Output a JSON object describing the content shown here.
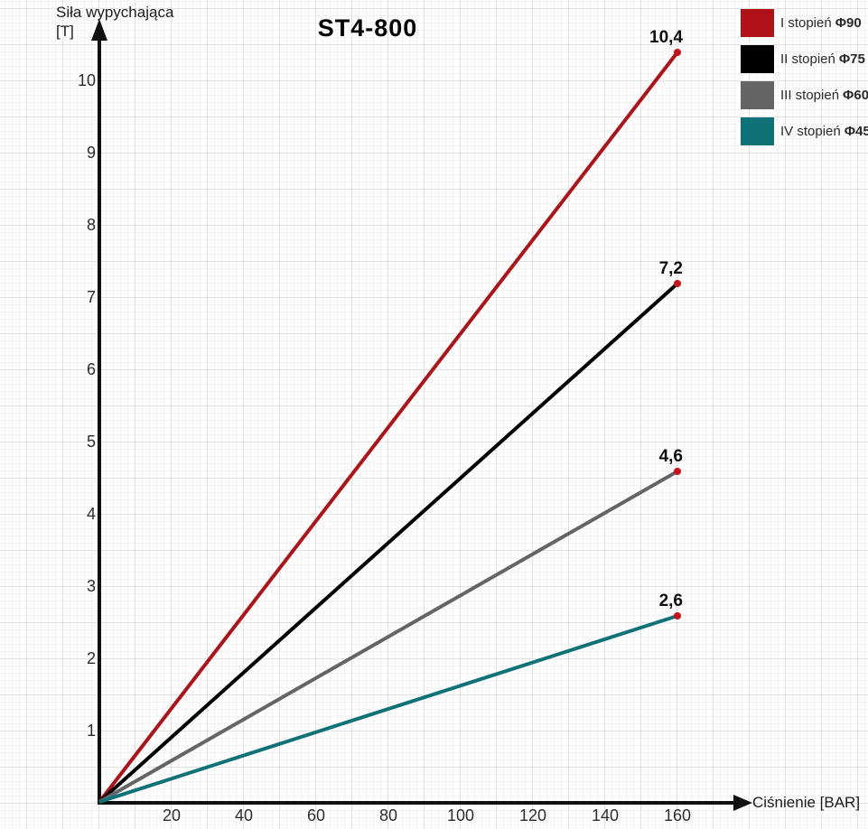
{
  "title": "ST4-800",
  "chart_data": {
    "type": "line",
    "title": "ST4-800",
    "axes": {
      "x_label": "Ciśnienie [BAR]",
      "y_label": "Siła wypychająca",
      "y_unit": "[T]",
      "x_ticks": [
        20,
        40,
        60,
        80,
        100,
        120,
        140,
        160
      ],
      "y_ticks": [
        1,
        2,
        3,
        4,
        5,
        6,
        7,
        8,
        9,
        10
      ],
      "xlim": [
        0,
        180
      ],
      "ylim": [
        0,
        10.9
      ],
      "grid": "graph-paper",
      "axis_color": "#111111"
    },
    "legend_position": "top-right",
    "marker_color": "#c8101a",
    "series": [
      {
        "name": "I stopień Φ90",
        "label": "I stopień",
        "phi": "Φ90",
        "color": "#b11218",
        "points": [
          [
            0,
            0
          ],
          [
            160,
            10.4
          ]
        ],
        "end_label": "10,4"
      },
      {
        "name": "II stopień Φ75",
        "label": "II stopień",
        "phi": "Φ75",
        "color": "#000000",
        "points": [
          [
            0,
            0
          ],
          [
            160,
            7.2
          ]
        ],
        "end_label": "7,2"
      },
      {
        "name": "III stopień Φ60",
        "label": "III stopień",
        "phi": "Φ60",
        "color": "#636567",
        "points": [
          [
            0,
            0
          ],
          [
            160,
            4.6
          ]
        ],
        "end_label": "4,6"
      },
      {
        "name": "IV stopień Φ45",
        "label": "IV stopień",
        "phi": "Φ45",
        "color": "#0f7277",
        "points": [
          [
            0,
            0
          ],
          [
            160,
            2.6
          ]
        ],
        "end_label": "2,6"
      }
    ]
  }
}
